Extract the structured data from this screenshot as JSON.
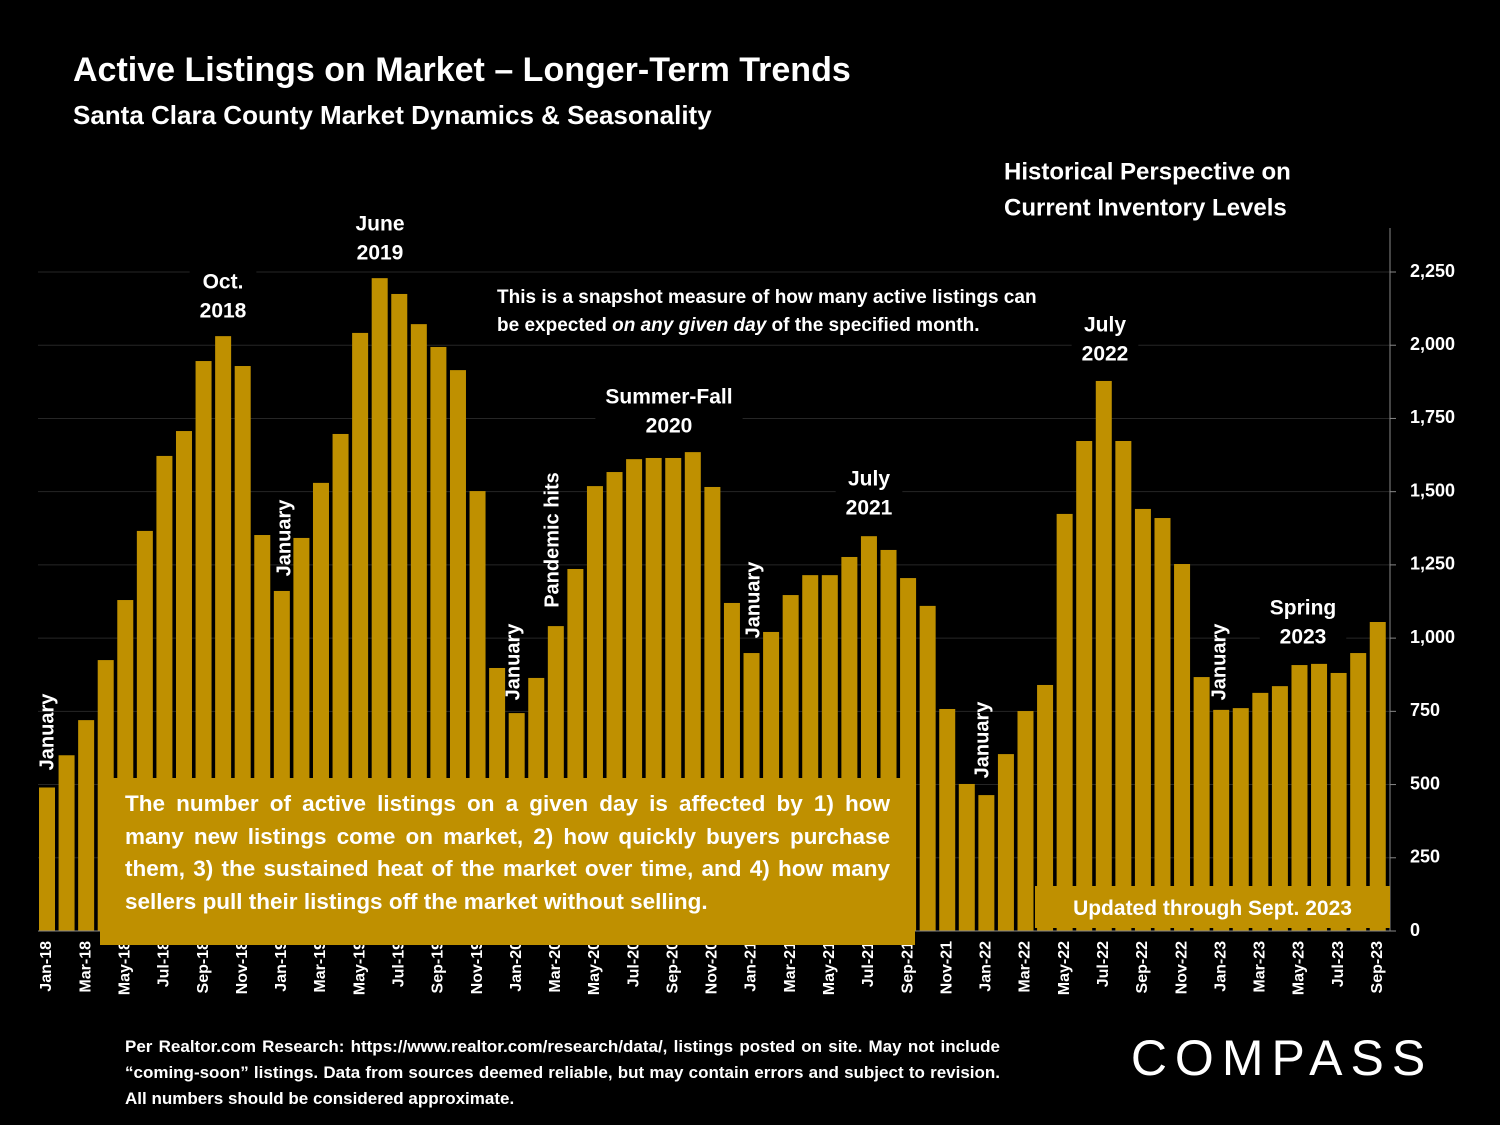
{
  "chart_data": {
    "type": "bar",
    "title": "Active Listings on Market – Longer-Term Trends",
    "subtitle": "Santa Clara County Market Dynamics & Seasonality",
    "side_heading": [
      "Historical Perspective on",
      "Current Inventory Levels"
    ],
    "note": [
      "This is a snapshot measure of how many active listings can be expected ",
      "on any given day",
      " of the specified month."
    ],
    "explanation": "The number of active listings on a given day is affected by 1) how many new listings come on market, 2) how quickly buyers purchase them, 3) the sustained heat of the market over time, and 4) how many sellers pull their listings off the market without selling.",
    "updated": "Updated through Sept. 2023",
    "footnote": "Per Realtor.com Research:  https://www.realtor.com/research/data/, listings posted on site. May not include “coming-soon” listings. Data from sources deemed reliable, but may contain errors and subject to revision. All numbers should be considered approximate.",
    "logo": "COMPASS",
    "annotations": [
      {
        "lines": [
          "Oct.",
          "2018"
        ]
      },
      {
        "lines": [
          "June",
          "2019"
        ]
      },
      {
        "lines": [
          "Summer-Fall",
          "2020"
        ]
      },
      {
        "lines": [
          "July",
          "2021"
        ]
      },
      {
        "lines": [
          "July",
          "2022"
        ]
      },
      {
        "lines": [
          "Spring",
          "2023"
        ]
      }
    ],
    "rotated_labels": [
      "January",
      "January",
      "January",
      "Pandemic hits",
      "January",
      "January",
      "January"
    ],
    "categories": [
      "Jan-18",
      null,
      "Mar-18",
      null,
      "May-18",
      null,
      "Jul-18",
      null,
      "Sep-18",
      null,
      "Nov-18",
      null,
      "Jan-19",
      null,
      "Mar-19",
      null,
      "May-19",
      null,
      "Jul-19",
      null,
      "Sep-19",
      null,
      "Nov-19",
      null,
      "Jan-20",
      null,
      "Mar-20",
      null,
      "May-20",
      null,
      "Jul-20",
      null,
      "Sep-20",
      null,
      "Nov-20",
      null,
      "Jan-21",
      null,
      "Mar-21",
      null,
      "May-21",
      null,
      "Jul-21",
      null,
      "Sep-21",
      null,
      "Nov-21",
      null,
      "Jan-22",
      null,
      "Mar-22",
      null,
      "May-22",
      null,
      "Jul-22",
      null,
      "Sep-22",
      null,
      "Nov-22",
      null,
      "Jan-23",
      null,
      "Mar-23",
      null,
      "May-23",
      null,
      "Jul-23",
      null,
      "Sep-23"
    ],
    "values": [
      490,
      600,
      720,
      925,
      1130,
      1366,
      1622,
      1707,
      1946,
      2031,
      1929,
      1352,
      1161,
      1342,
      1530,
      1697,
      2042,
      2229,
      2175,
      2072,
      1994,
      1915,
      1502,
      898,
      744,
      864,
      1041,
      1236,
      1519,
      1567,
      1611,
      1615,
      1615,
      1635,
      1516,
      1120,
      949,
      1021,
      1147,
      1215,
      1215,
      1277,
      1348,
      1301,
      1205,
      1110,
      758,
      502,
      464,
      604,
      751,
      840,
      1424,
      1673,
      1878,
      1673,
      1441,
      1410,
      1253,
      867,
      755,
      761,
      813,
      836,
      908,
      912,
      881,
      949,
      1055
    ],
    "color": "#bf9000",
    "ylim": [
      0,
      2400
    ],
    "yticks": [
      0,
      {
        "value": 250,
        "label": "250"
      },
      {
        "value": 500,
        "label": "500"
      },
      {
        "value": 750,
        "label": "750"
      },
      {
        "value": 1000,
        "label": "1,000"
      },
      {
        "value": 1250,
        "label": "1,250"
      },
      {
        "value": 1500,
        "label": "1,500"
      },
      {
        "value": 1750,
        "label": "1,750"
      },
      {
        "value": 2000,
        "label": "2,000"
      },
      {
        "value": 2250,
        "label": "2,250"
      }
    ],
    "grid": true,
    "y_axis_side": "right"
  }
}
